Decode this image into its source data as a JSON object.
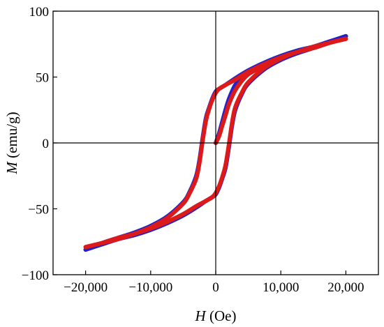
{
  "chart_data": {
    "type": "line",
    "title": "",
    "xlabel": {
      "symbol": "H",
      "unit": " (Oe)"
    },
    "ylabel": {
      "symbol": "M",
      "unit": " (emu/g)"
    },
    "xlim": [
      -25000,
      25000
    ],
    "ylim": [
      -100,
      100
    ],
    "xticks": [
      -20000,
      -10000,
      0,
      10000,
      20000
    ],
    "xtick_labels": [
      "−20,000",
      "−10,000",
      "0",
      "10,000",
      "20,000"
    ],
    "yticks": [
      -100,
      -50,
      0,
      50,
      100
    ],
    "ytick_labels": [
      "−100",
      "−50",
      "0",
      "50",
      "100"
    ],
    "zero_lines": true,
    "grid": false,
    "legend": "none",
    "series": [
      {
        "color": "#2222cc",
        "width": 6,
        "segments": [
          {
            "x": [
              0,
              500,
              1000,
              1500,
              2000,
              2500,
              3000,
              4000,
              5000,
              6000,
              8000,
              10000,
              12500,
              15000,
              17500,
              20000
            ],
            "y": [
              0,
              7,
              16,
              25,
              33,
              39,
              44,
              50,
              54,
              57,
              62,
              66,
              70,
              73,
              77,
              81
            ]
          },
          {
            "x": [
              20000,
              17500,
              15000,
              12500,
              10000,
              7500,
              5000,
              3000,
              1500,
              500,
              0,
              -500,
              -1000,
              -1500,
              -2000,
              -2500,
              -3000,
              -4000,
              -5000,
              -7500,
              -10000,
              -12500,
              -15000,
              -17500,
              -20000
            ],
            "y": [
              81,
              77,
              73,
              70,
              66,
              61,
              55,
              49,
              44,
              41,
              39,
              34,
              27,
              19,
              4,
              -13,
              -25,
              -37,
              -45,
              -56,
              -63,
              -68,
              -72,
              -76,
              -81
            ]
          },
          {
            "x": [
              -20000,
              -17500,
              -15000,
              -12500,
              -10000,
              -7500,
              -5000,
              -3000,
              -1500,
              -500,
              0,
              500,
              1000,
              1500,
              2000,
              2500,
              3000,
              4000,
              5000,
              7500,
              10000,
              12500,
              15000,
              17500,
              20000
            ],
            "y": [
              -81,
              -77,
              -73,
              -70,
              -66,
              -61,
              -55,
              -49,
              -44,
              -41,
              -39,
              -34,
              -27,
              -19,
              -4,
              13,
              25,
              37,
              45,
              56,
              63,
              68,
              72,
              76,
              81
            ]
          }
        ]
      },
      {
        "color": "#dd1a1a",
        "width": 6,
        "segments": [
          {
            "x": [
              0,
              500,
              1000,
              1500,
              2000,
              2500,
              3000,
              4000,
              5000,
              6000,
              8000,
              10000,
              12500,
              15000,
              17500,
              20000
            ],
            "y": [
              0,
              5,
              13,
              21,
              29,
              35,
              40,
              47,
              52,
              55,
              61,
              65,
              69,
              72,
              76,
              79
            ]
          },
          {
            "x": [
              20000,
              17500,
              15000,
              12500,
              10000,
              7500,
              5000,
              3000,
              1500,
              500,
              0,
              -500,
              -1000,
              -1500,
              -2000,
              -2500,
              -3000,
              -4000,
              -5000,
              -7500,
              -10000,
              -12500,
              -15000,
              -17500,
              -20000
            ],
            "y": [
              79,
              76,
              72,
              69,
              65,
              60,
              54,
              48,
              44,
              41,
              38,
              33,
              26,
              17,
              2,
              -15,
              -27,
              -38,
              -46,
              -57,
              -64,
              -69,
              -73,
              -76,
              -79
            ]
          },
          {
            "x": [
              -20000,
              -17500,
              -15000,
              -12500,
              -10000,
              -7500,
              -5000,
              -3000,
              -1500,
              -500,
              0,
              500,
              1000,
              1500,
              2000,
              2500,
              3000,
              4000,
              5000,
              7500,
              10000,
              12500,
              15000,
              17500,
              20000
            ],
            "y": [
              -79,
              -76,
              -72,
              -69,
              -65,
              -60,
              -54,
              -48,
              -44,
              -41,
              -38,
              -33,
              -26,
              -17,
              -2,
              15,
              27,
              38,
              46,
              57,
              64,
              69,
              73,
              76,
              79
            ]
          }
        ]
      }
    ]
  }
}
